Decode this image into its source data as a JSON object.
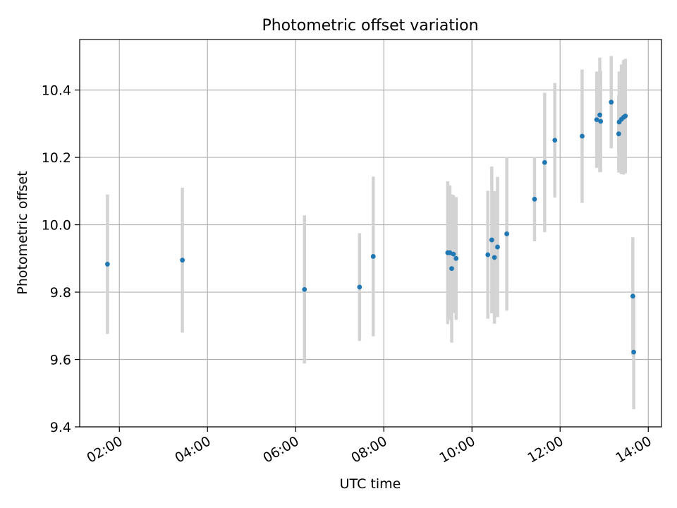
{
  "chart_data": {
    "type": "scatter",
    "title": "Photometric offset variation",
    "xlabel": "UTC time",
    "ylabel": "Photometric offset",
    "x_unit": "hours UTC",
    "xlim": [
      1.1,
      14.3
    ],
    "ylim": [
      9.4,
      10.55
    ],
    "x_ticks": [
      {
        "value": 2,
        "label": "02:00"
      },
      {
        "value": 4,
        "label": "04:00"
      },
      {
        "value": 6,
        "label": "06:00"
      },
      {
        "value": 8,
        "label": "08:00"
      },
      {
        "value": 10,
        "label": "10:00"
      },
      {
        "value": 12,
        "label": "12:00"
      },
      {
        "value": 14,
        "label": "14:00"
      }
    ],
    "y_ticks": [
      {
        "value": 9.4,
        "label": "9.4"
      },
      {
        "value": 9.6,
        "label": "9.6"
      },
      {
        "value": 9.8,
        "label": "9.8"
      },
      {
        "value": 10.0,
        "label": "10.0"
      },
      {
        "value": 10.2,
        "label": "10.2"
      },
      {
        "value": 10.4,
        "label": "10.4"
      }
    ],
    "grid": true,
    "point_color": "#1f77b4",
    "errorbar_color": "#d3d3d3",
    "points": [
      {
        "x": 1.73,
        "y": 9.883,
        "err": 0.207
      },
      {
        "x": 3.43,
        "y": 9.895,
        "err": 0.215
      },
      {
        "x": 6.2,
        "y": 9.808,
        "err": 0.22
      },
      {
        "x": 7.45,
        "y": 9.815,
        "err": 0.16
      },
      {
        "x": 7.76,
        "y": 9.906,
        "err": 0.237
      },
      {
        "x": 9.45,
        "y": 9.917,
        "err": 0.212
      },
      {
        "x": 9.5,
        "y": 9.917,
        "err": 0.2
      },
      {
        "x": 9.54,
        "y": 9.87,
        "err": 0.22
      },
      {
        "x": 9.58,
        "y": 9.913,
        "err": 0.175
      },
      {
        "x": 9.64,
        "y": 9.9,
        "err": 0.182
      },
      {
        "x": 10.36,
        "y": 9.911,
        "err": 0.19
      },
      {
        "x": 10.45,
        "y": 9.955,
        "err": 0.218
      },
      {
        "x": 10.51,
        "y": 9.903,
        "err": 0.197
      },
      {
        "x": 10.58,
        "y": 9.934,
        "err": 0.208
      },
      {
        "x": 10.79,
        "y": 9.973,
        "err": 0.228
      },
      {
        "x": 11.42,
        "y": 10.076,
        "err": 0.125
      },
      {
        "x": 11.65,
        "y": 10.185,
        "err": 0.207
      },
      {
        "x": 11.88,
        "y": 10.251,
        "err": 0.17
      },
      {
        "x": 12.5,
        "y": 10.263,
        "err": 0.198
      },
      {
        "x": 12.83,
        "y": 10.312,
        "err": 0.143
      },
      {
        "x": 12.9,
        "y": 10.326,
        "err": 0.17
      },
      {
        "x": 12.92,
        "y": 10.307,
        "err": 0.15
      },
      {
        "x": 13.16,
        "y": 10.364,
        "err": 0.137
      },
      {
        "x": 13.33,
        "y": 10.27,
        "err": 0.115
      },
      {
        "x": 13.34,
        "y": 10.305,
        "err": 0.15
      },
      {
        "x": 13.39,
        "y": 10.313,
        "err": 0.163
      },
      {
        "x": 13.44,
        "y": 10.319,
        "err": 0.17
      },
      {
        "x": 13.48,
        "y": 10.323,
        "err": 0.17
      },
      {
        "x": 13.65,
        "y": 9.788,
        "err": 0.175
      },
      {
        "x": 13.67,
        "y": 9.622,
        "err": 0.17
      }
    ]
  }
}
